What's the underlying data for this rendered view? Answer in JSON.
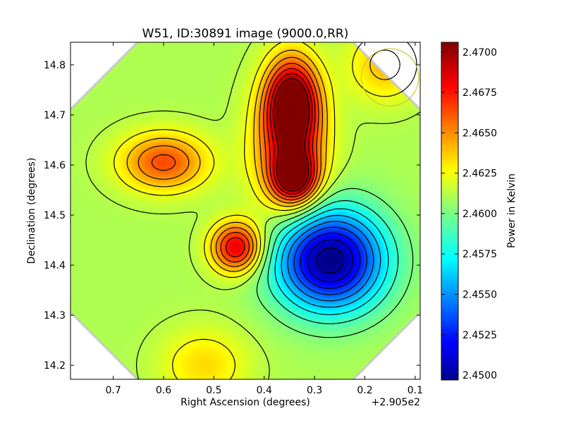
{
  "chart_data": {
    "type": "heatmap",
    "title": "W51, ID:30891 image (9000.0,RR)",
    "xlabel": "Right Ascension (degrees)",
    "ylabel": "Declination (degrees)",
    "x_offset_label": "+2.905e2",
    "colorbar_label": "Power in Kelvin",
    "xlim": [
      0.785,
      0.09
    ],
    "ylim": [
      14.172,
      14.845
    ],
    "x_ticks": [
      {
        "value": 0.7,
        "label": "0.7"
      },
      {
        "value": 0.6,
        "label": "0.6"
      },
      {
        "value": 0.5,
        "label": "0.5"
      },
      {
        "value": 0.4,
        "label": "0.4"
      },
      {
        "value": 0.3,
        "label": "0.3"
      },
      {
        "value": 0.2,
        "label": "0.2"
      },
      {
        "value": 0.1,
        "label": "0.1"
      }
    ],
    "y_ticks": [
      {
        "value": 14.2,
        "label": "14.2"
      },
      {
        "value": 14.3,
        "label": "14.3"
      },
      {
        "value": 14.4,
        "label": "14.4"
      },
      {
        "value": 14.5,
        "label": "14.5"
      },
      {
        "value": 14.6,
        "label": "14.6"
      },
      {
        "value": 14.7,
        "label": "14.7"
      },
      {
        "value": 14.8,
        "label": "14.8"
      }
    ],
    "colorbar_range": [
      2.4497,
      2.4706
    ],
    "colorbar_ticks": [
      {
        "value": 2.45,
        "label": "2.4500"
      },
      {
        "value": 2.4525,
        "label": "2.4525"
      },
      {
        "value": 2.455,
        "label": "2.4550"
      },
      {
        "value": 2.4575,
        "label": "2.4575"
      },
      {
        "value": 2.46,
        "label": "2.4600"
      },
      {
        "value": 2.4625,
        "label": "2.4625"
      },
      {
        "value": 2.465,
        "label": "2.4650"
      },
      {
        "value": 2.4675,
        "label": "2.4675"
      },
      {
        "value": 2.47,
        "label": "2.4700"
      }
    ],
    "colormap": "jet",
    "background_level": 2.4611,
    "features": [
      {
        "name": "peak-north",
        "x": 0.345,
        "y": 14.725,
        "value": 2.4706,
        "sx": 0.035,
        "sy": 0.06
      },
      {
        "name": "peak-ridge",
        "x": 0.35,
        "y": 14.63,
        "value": 2.467,
        "sx": 0.05,
        "sy": 0.09
      },
      {
        "name": "peak-center",
        "x": 0.34,
        "y": 14.575,
        "value": 2.4688,
        "sx": 0.03,
        "sy": 0.035
      },
      {
        "name": "peak-west",
        "x": 0.6,
        "y": 14.605,
        "value": 2.4665,
        "sx": 0.06,
        "sy": 0.04
      },
      {
        "name": "peak-southwest",
        "x": 0.455,
        "y": 14.435,
        "value": 2.4688,
        "sx": 0.035,
        "sy": 0.035
      },
      {
        "name": "peak-south",
        "x": 0.52,
        "y": 14.2,
        "value": 2.4635,
        "sx": 0.06,
        "sy": 0.05
      },
      {
        "name": "peak-northeast",
        "x": 0.16,
        "y": 14.8,
        "value": 2.4642,
        "sx": 0.05,
        "sy": 0.05
      },
      {
        "name": "trough",
        "x": 0.27,
        "y": 14.41,
        "value": 2.4497,
        "sx": 0.075,
        "sy": 0.07
      }
    ],
    "beam_marker": {
      "x": 0.15,
      "y": 14.775,
      "radius": 0.057,
      "color": "#c8c832"
    },
    "grid": false,
    "legend": "none"
  }
}
